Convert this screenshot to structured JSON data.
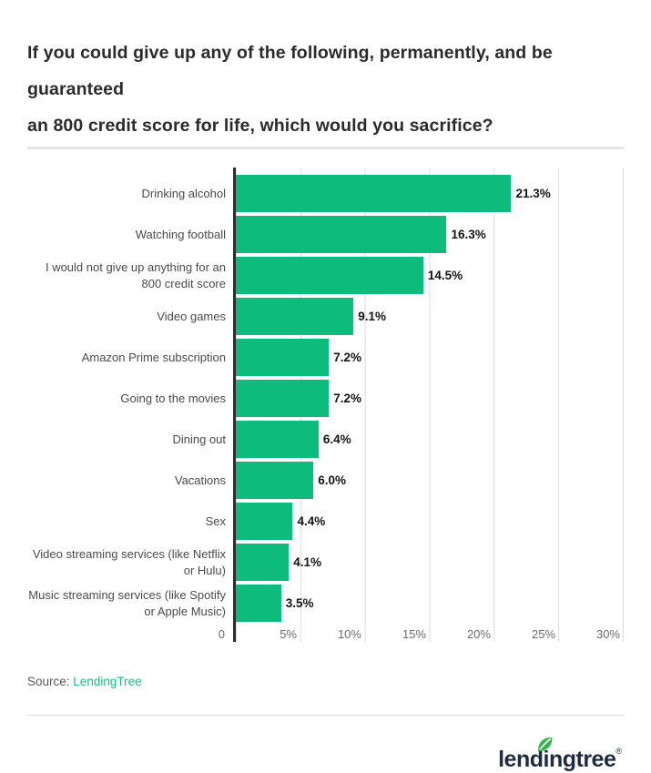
{
  "title_lines": [
    "If you could give up any of the following, permanently, and be guaranteed",
    "an 800 credit score for life, which would you sacrifice?"
  ],
  "chart_data": {
    "type": "bar",
    "orientation": "horizontal",
    "title": "If you could give up any of the following, permanently, and be guaranteed an 800 credit score for life, which would you sacrifice?",
    "categories": [
      "Drinking alcohol",
      "Watching football",
      "I would not give up anything for an 800 credit score",
      "Video games",
      "Amazon Prime subscription",
      "Going to the movies",
      "Dining out",
      "Vacations",
      "Sex",
      "Video streaming services (like Netflix or Hulu)",
      "Music streaming services (like Spotify or Apple Music)"
    ],
    "values": [
      21.3,
      16.3,
      14.5,
      9.1,
      7.2,
      7.2,
      6.4,
      6.0,
      4.4,
      4.1,
      3.5
    ],
    "value_labels": [
      "21.3%",
      "16.3%",
      "14.5%",
      "9.1%",
      "7.2%",
      "7.2%",
      "6.4%",
      "6.0%",
      "4.4%",
      "4.1%",
      "3.5%"
    ],
    "xlabel": "",
    "ylabel": "",
    "xlim": [
      0,
      30
    ],
    "ticks": [
      {
        "value": 0,
        "label": "0"
      },
      {
        "value": 5,
        "label": "5%"
      },
      {
        "value": 10,
        "label": "10%"
      },
      {
        "value": 15,
        "label": "15%"
      },
      {
        "value": 20,
        "label": "20%"
      },
      {
        "value": 25,
        "label": "25%"
      },
      {
        "value": 30,
        "label": "30%"
      }
    ],
    "grid": true,
    "legend": false,
    "bar_color": "#0dbc7c"
  },
  "source": {
    "prefix": "Source:",
    "link_text": "LendingTree"
  },
  "footer": {
    "logo_text": "lendingtree",
    "registered_mark": "®",
    "leaf_icon": "leaf-icon"
  },
  "colors": {
    "bar": "#0dbc7c",
    "axis": "#2e2e2e",
    "gridline": "#dcdcdc",
    "source_link": "#1fbd83",
    "logo_navy": "#1f2b3e",
    "leaf_green": "#33b44a",
    "divider": "#e4e4e4"
  }
}
